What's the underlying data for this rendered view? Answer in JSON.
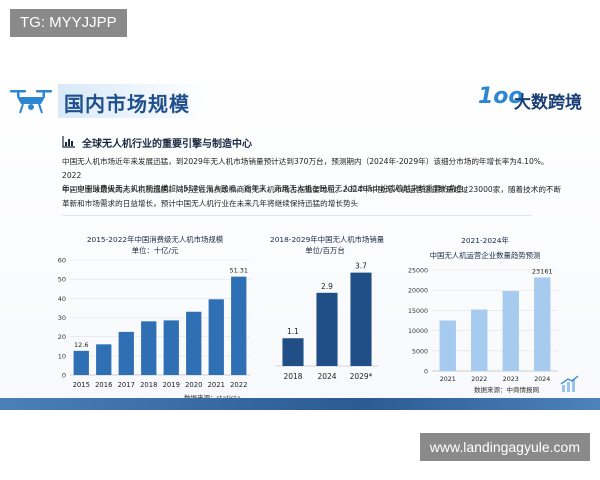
{
  "watermark_top": "TG: MYYJJPP",
  "watermark_bottom": "www.landingagyule.com",
  "slide": {
    "title": "国内市场规模",
    "logo_mark": "1oo",
    "logo_text": "大数跨境",
    "section_title": "全球无人机行业的重要引擎与制造中心",
    "paragraph1_line1": "中国无人机市场近年来发展迅猛，到2029年无人机市场销量预计达到370万台，预测期内（2024年-2029年）该细分市场的年增长率为4.10%。2022",
    "paragraph1_line2": "年，中国消费级无人机市场规模超过510亿元人民币。近年来，商用无人机在民用无人机市场中扮演着越来越重要的角色。",
    "paragraph2_line1": "中国是全球最大的无人机制造国，同时还在消费级和商用无人机市场占据重要地位。2024年中国无人机运营企业数量超过23000家，随着技术的不断",
    "paragraph2_line2": "革新和市场需求的日益增长，预计中国无人机行业在未来几年将继续保持迅猛的增长势头"
  },
  "colors": {
    "chart1_bar": "#2f6fb4",
    "chart2_bar": "#1f4f86",
    "chart3_bar": "#a6cbee",
    "title": "#1f4f8c",
    "accent": "#2c87d2"
  },
  "chart_data": [
    {
      "type": "bar",
      "title": "2015-2022年中国消费级无人机市场规模",
      "subtitle": "单位：十亿/元",
      "categories": [
        "2015",
        "2016",
        "2017",
        "2018",
        "2019",
        "2020",
        "2021",
        "2022"
      ],
      "values": [
        12.6,
        16,
        22.5,
        28,
        28.5,
        33,
        39.5,
        51.31
      ],
      "data_labels": {
        "0": "12.6",
        "7": "51.31"
      },
      "ylim": [
        0,
        60
      ],
      "yticks": [
        "0",
        "10",
        "20",
        "30",
        "40",
        "50",
        "60"
      ],
      "grid": true,
      "source": "数据来源：statista"
    },
    {
      "type": "bar",
      "title": "2018-2029年中国无人机市场销量",
      "subtitle": "单位/百万台",
      "categories": [
        "2018",
        "2024",
        "2029*"
      ],
      "values": [
        1.1,
        2.9,
        3.7
      ],
      "data_labels": {
        "0": "1.1",
        "1": "2.9",
        "2": "3.7"
      },
      "ylim": [
        0,
        4.2
      ],
      "grid": false
    },
    {
      "type": "bar",
      "title": "2021-2024年",
      "subtitle": "中国无人机运营企业数量趋势预测",
      "categories": [
        "2021",
        "2022",
        "2023",
        "2024"
      ],
      "values": [
        12500,
        15200,
        19800,
        23161
      ],
      "data_labels": {
        "3": "23161"
      },
      "ylim": [
        0,
        25000
      ],
      "yticks": [
        "0",
        "5000",
        "10000",
        "15000",
        "20000",
        "25000"
      ],
      "grid": true,
      "source": "数据来源：中商情报网"
    }
  ]
}
